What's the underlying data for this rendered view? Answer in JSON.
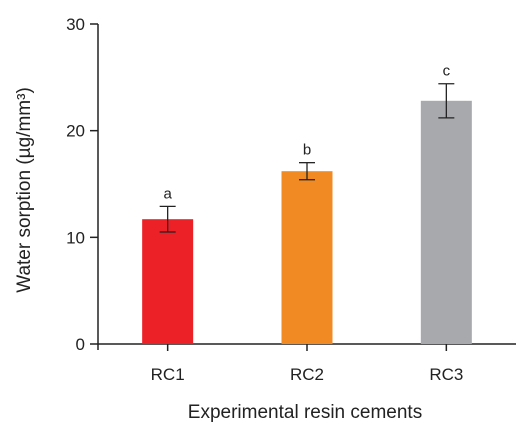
{
  "chart_data": {
    "type": "bar",
    "categories": [
      "RC1",
      "RC2",
      "RC3"
    ],
    "values": [
      11.7,
      16.2,
      22.8
    ],
    "error": [
      1.2,
      0.8,
      1.6
    ],
    "annotations": [
      "a",
      "b",
      "c"
    ],
    "colors": [
      "#ec2027",
      "#f28a24",
      "#a8a9ad"
    ],
    "title": "",
    "xlabel": "Experimental resin cements",
    "ylabel": "Water sorption (µg/mm³)",
    "ylim": [
      0,
      30
    ],
    "yticks": [
      0,
      10,
      20,
      30
    ],
    "grid": false,
    "legend": "none"
  }
}
